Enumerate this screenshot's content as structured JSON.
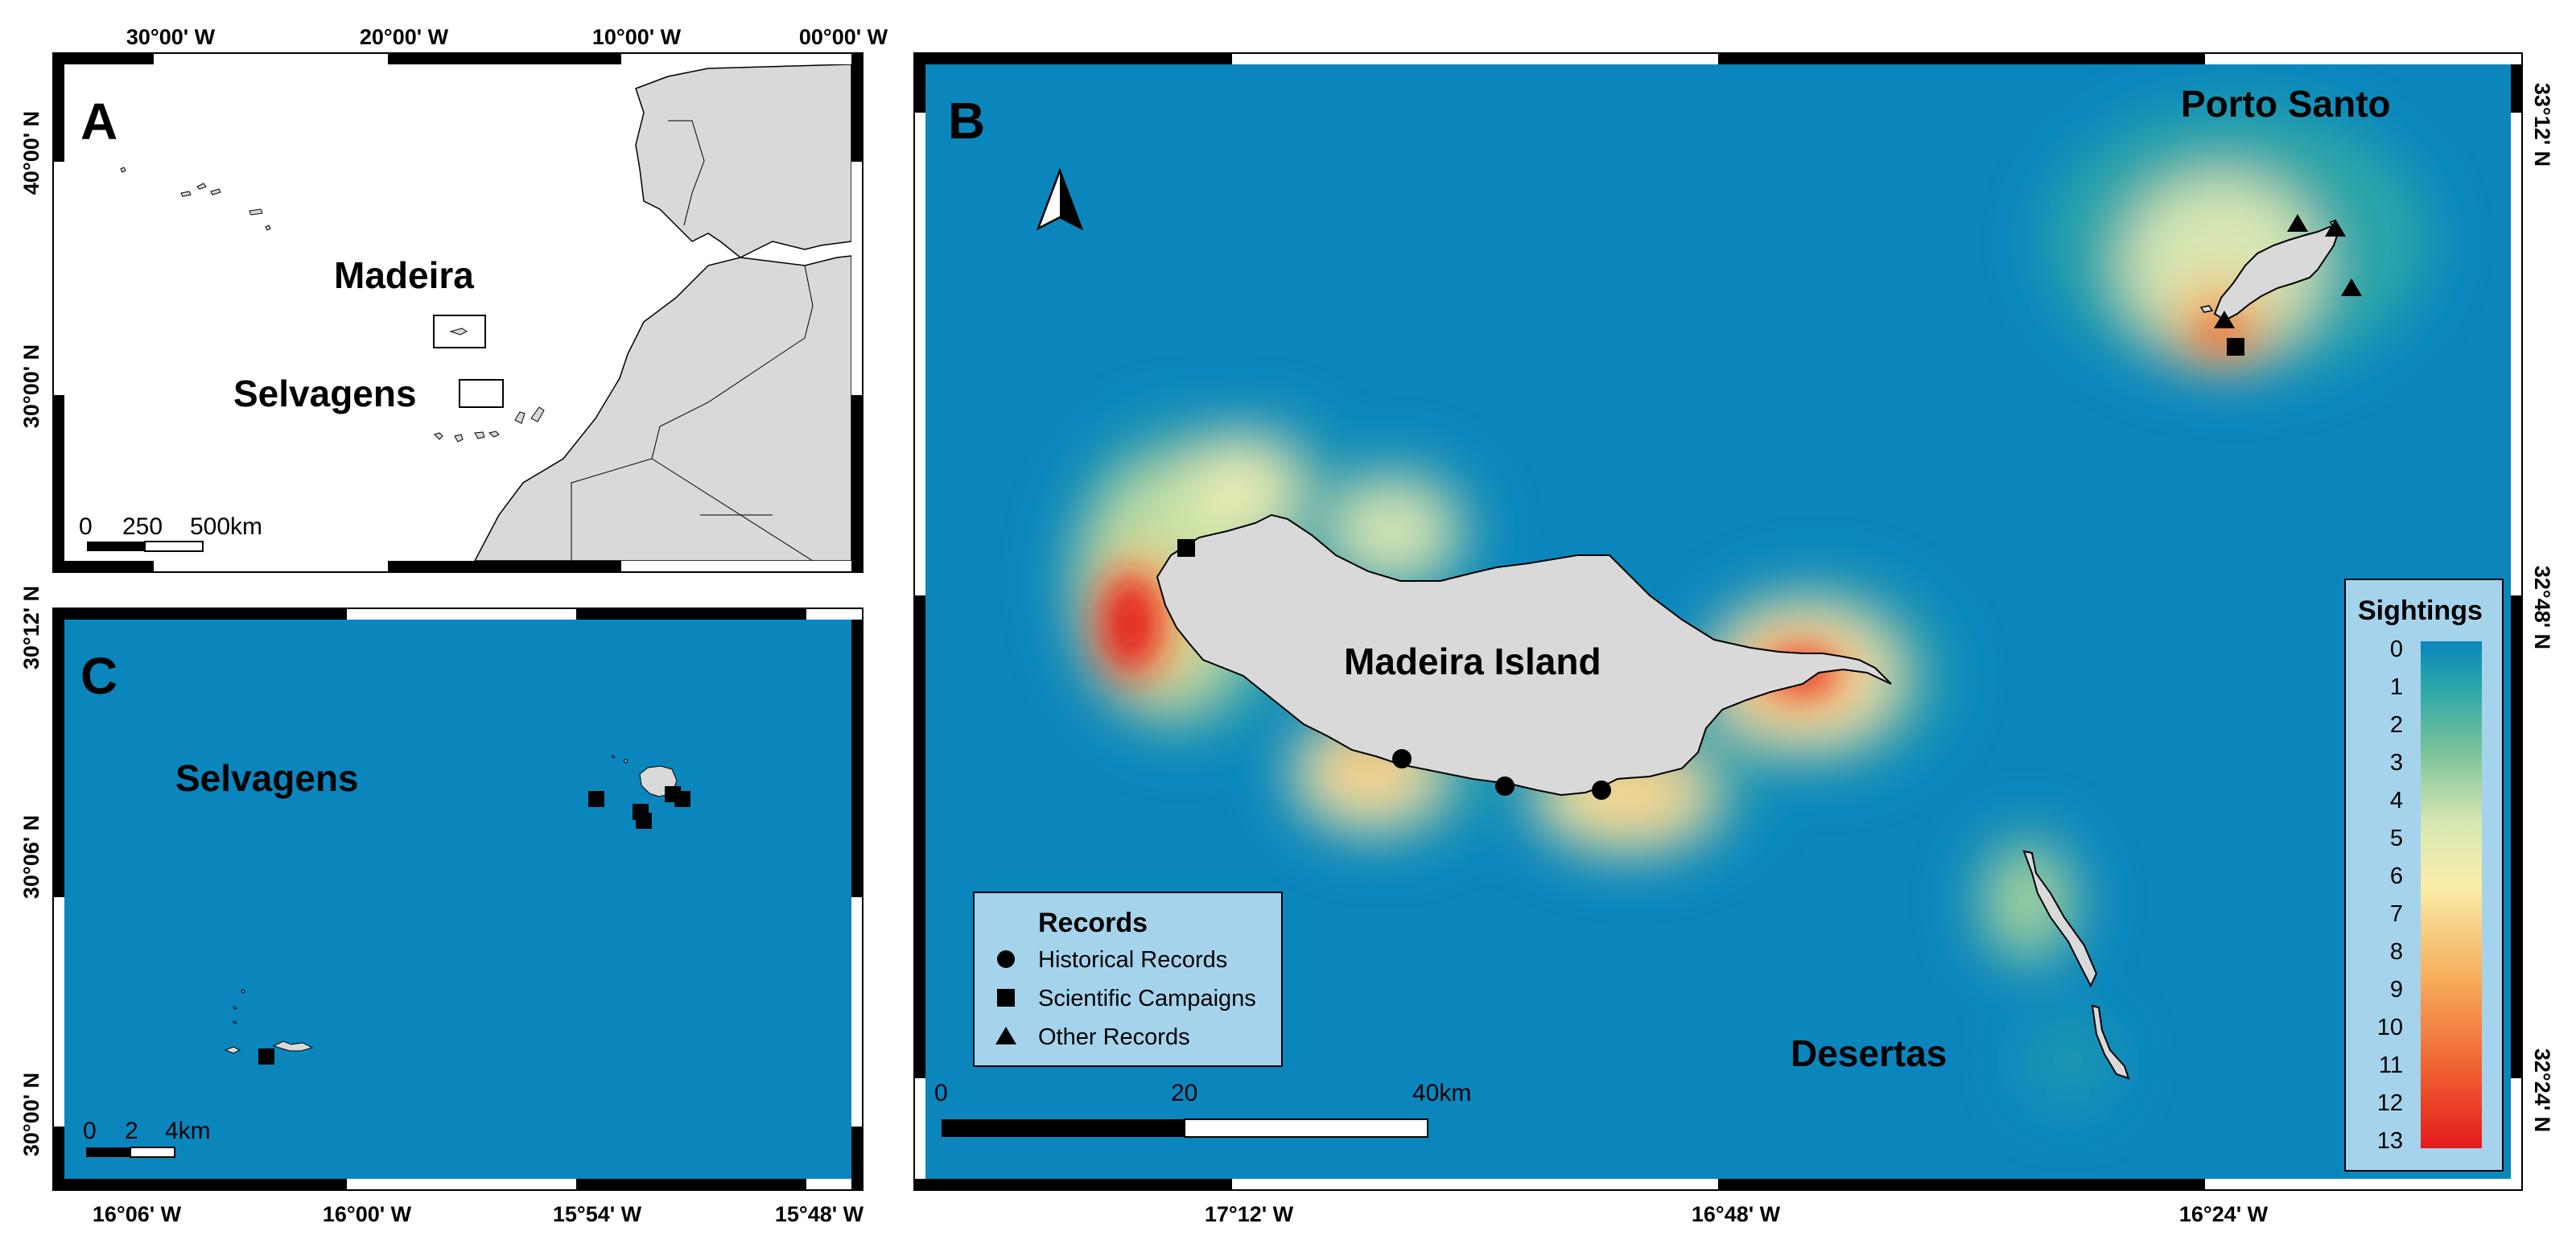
{
  "panel_a": {
    "letter": "A",
    "lon_ticks": [
      "30°00' W",
      "20°00' W",
      "10°00' W",
      "00°00' W"
    ],
    "lat_ticks": [
      "40°00' N",
      "30°00' N"
    ],
    "labels": {
      "madeira": "Madeira",
      "selvagens": "Selvagens"
    },
    "scale": {
      "l0": "0",
      "l1": "250",
      "l2": "500km"
    }
  },
  "panel_b": {
    "letter": "B",
    "lon_ticks": [
      "17°12' W",
      "16°48' W",
      "16°24' W"
    ],
    "lat_ticks": [
      "33°12' N",
      "32°48' N",
      "32°24' N"
    ],
    "labels": {
      "porto_santo": "Porto Santo",
      "madeira_island": "Madeira Island",
      "desertas": "Desertas"
    },
    "scale": {
      "l0": "0",
      "l1": "20",
      "l2": "40km"
    },
    "records_legend": {
      "title": "Records",
      "items": [
        {
          "label": "Historical Records",
          "symbol": "circle"
        },
        {
          "label": "Scientific Campaigns",
          "symbol": "square"
        },
        {
          "label": "Other Records",
          "symbol": "triangle"
        }
      ]
    },
    "sightings_legend": {
      "title": "Sightings",
      "ticks": [
        "0",
        "1",
        "2",
        "3",
        "4",
        "5",
        "6",
        "7",
        "8",
        "9",
        "10",
        "11",
        "12",
        "13"
      ],
      "colors": [
        "#0a86bd",
        "#2aa6a8",
        "#7cc39a",
        "#d8e8b4",
        "#f8edaa",
        "#f6b05e",
        "#ef6332",
        "#e31a1c"
      ]
    },
    "north_arrow_icon": "north-arrow-icon"
  },
  "panel_c": {
    "letter": "C",
    "lon_ticks": [
      "16°06' W",
      "16°00' W",
      "15°54' W",
      "15°48' W"
    ],
    "lat_ticks": [
      "30°12' N",
      "30°06' N",
      "30°00' N"
    ],
    "labels": {
      "selvagens": "Selvagens"
    },
    "scale": {
      "l0": "0",
      "l1": "2",
      "l2": "4km"
    }
  },
  "colors": {
    "ocean": "#0a86bd",
    "land": "#d9d9d9",
    "frame_dark": "#000000",
    "legend_bg": "#a6d3ec"
  }
}
